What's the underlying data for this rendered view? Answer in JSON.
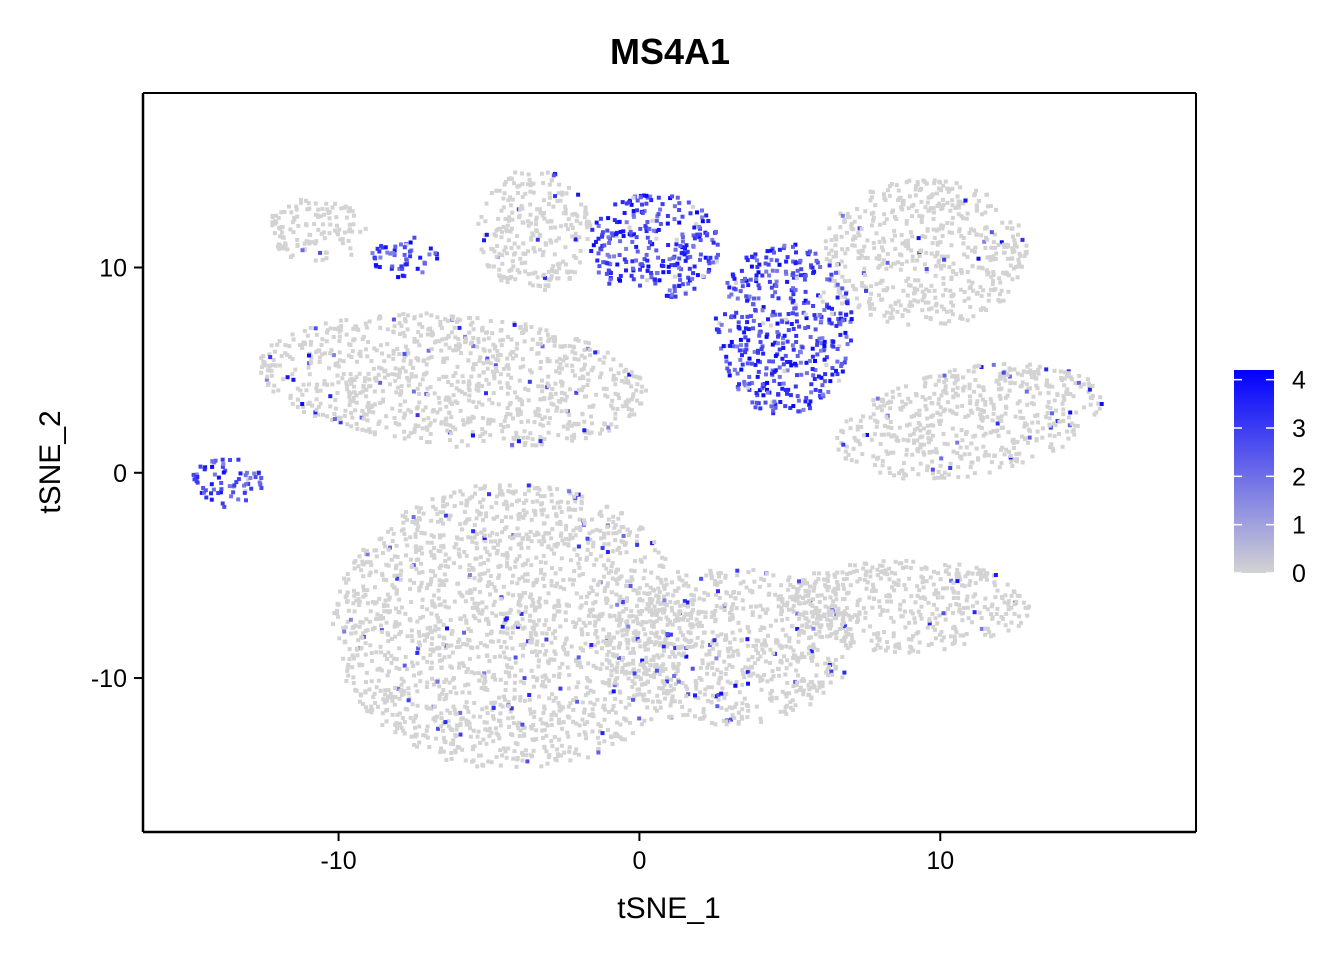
{
  "chart_data": {
    "type": "scatter",
    "title": "MS4A1",
    "xlabel": "tSNE_1",
    "ylabel": "tSNE_2",
    "xlim": [
      -16.5,
      18.5
    ],
    "ylim": [
      -17.5,
      18.5
    ],
    "xticks": [
      -10,
      0,
      10
    ],
    "xtick_labels": [
      "-10",
      "0",
      "10"
    ],
    "yticks": [
      -10,
      0,
      10
    ],
    "ytick_labels": [
      "-10",
      "0",
      "10"
    ],
    "grid": false,
    "legend_position": "right",
    "color_scale": {
      "low": "#d3d3d3",
      "high": "#0000ff",
      "min": 0,
      "max": 4.2,
      "ticks": [
        0,
        1,
        2,
        3,
        4
      ],
      "tick_labels": [
        "0",
        "1",
        "2",
        "3",
        "4"
      ]
    },
    "clusters": [
      {
        "cx": -6.2,
        "cy": 4.5,
        "rx": 6.5,
        "ry": 3.2,
        "rot": -8,
        "expr": 0.03
      },
      {
        "cx": -4.2,
        "cy": -7.5,
        "rx": 6.0,
        "ry": 7.0,
        "rot": 0,
        "expr": 0.04
      },
      {
        "cx": 3.0,
        "cy": -8.5,
        "rx": 4.2,
        "ry": 3.8,
        "rot": 15,
        "expr": 0.05
      },
      {
        "cx": 8.8,
        "cy": -6.5,
        "rx": 4.2,
        "ry": 2.3,
        "rot": 0,
        "expr": 0.04
      },
      {
        "cx": 11.0,
        "cy": 2.5,
        "rx": 4.6,
        "ry": 2.6,
        "rot": 18,
        "expr": 0.04
      },
      {
        "cx": 9.5,
        "cy": 10.7,
        "rx": 3.4,
        "ry": 3.6,
        "rot": 0,
        "expr": 0.03
      },
      {
        "cx": -3.5,
        "cy": 11.8,
        "rx": 1.9,
        "ry": 3.0,
        "rot": 0,
        "expr": 0.03
      },
      {
        "cx": -10.7,
        "cy": 11.8,
        "rx": 1.7,
        "ry": 1.6,
        "rot": 0,
        "expr": 0.03
      },
      {
        "cx": 0.5,
        "cy": 11.0,
        "rx": 2.2,
        "ry": 2.6,
        "rot": 0,
        "expr": 0.95
      },
      {
        "cx": 4.8,
        "cy": 7.0,
        "rx": 2.3,
        "ry": 4.2,
        "rot": 0,
        "expr": 0.95
      },
      {
        "cx": -7.8,
        "cy": 10.5,
        "rx": 1.1,
        "ry": 1.0,
        "rot": 0,
        "expr": 0.98
      },
      {
        "cx": -13.7,
        "cy": -0.5,
        "rx": 1.2,
        "ry": 1.2,
        "rot": 0,
        "expr": 0.96
      }
    ]
  }
}
